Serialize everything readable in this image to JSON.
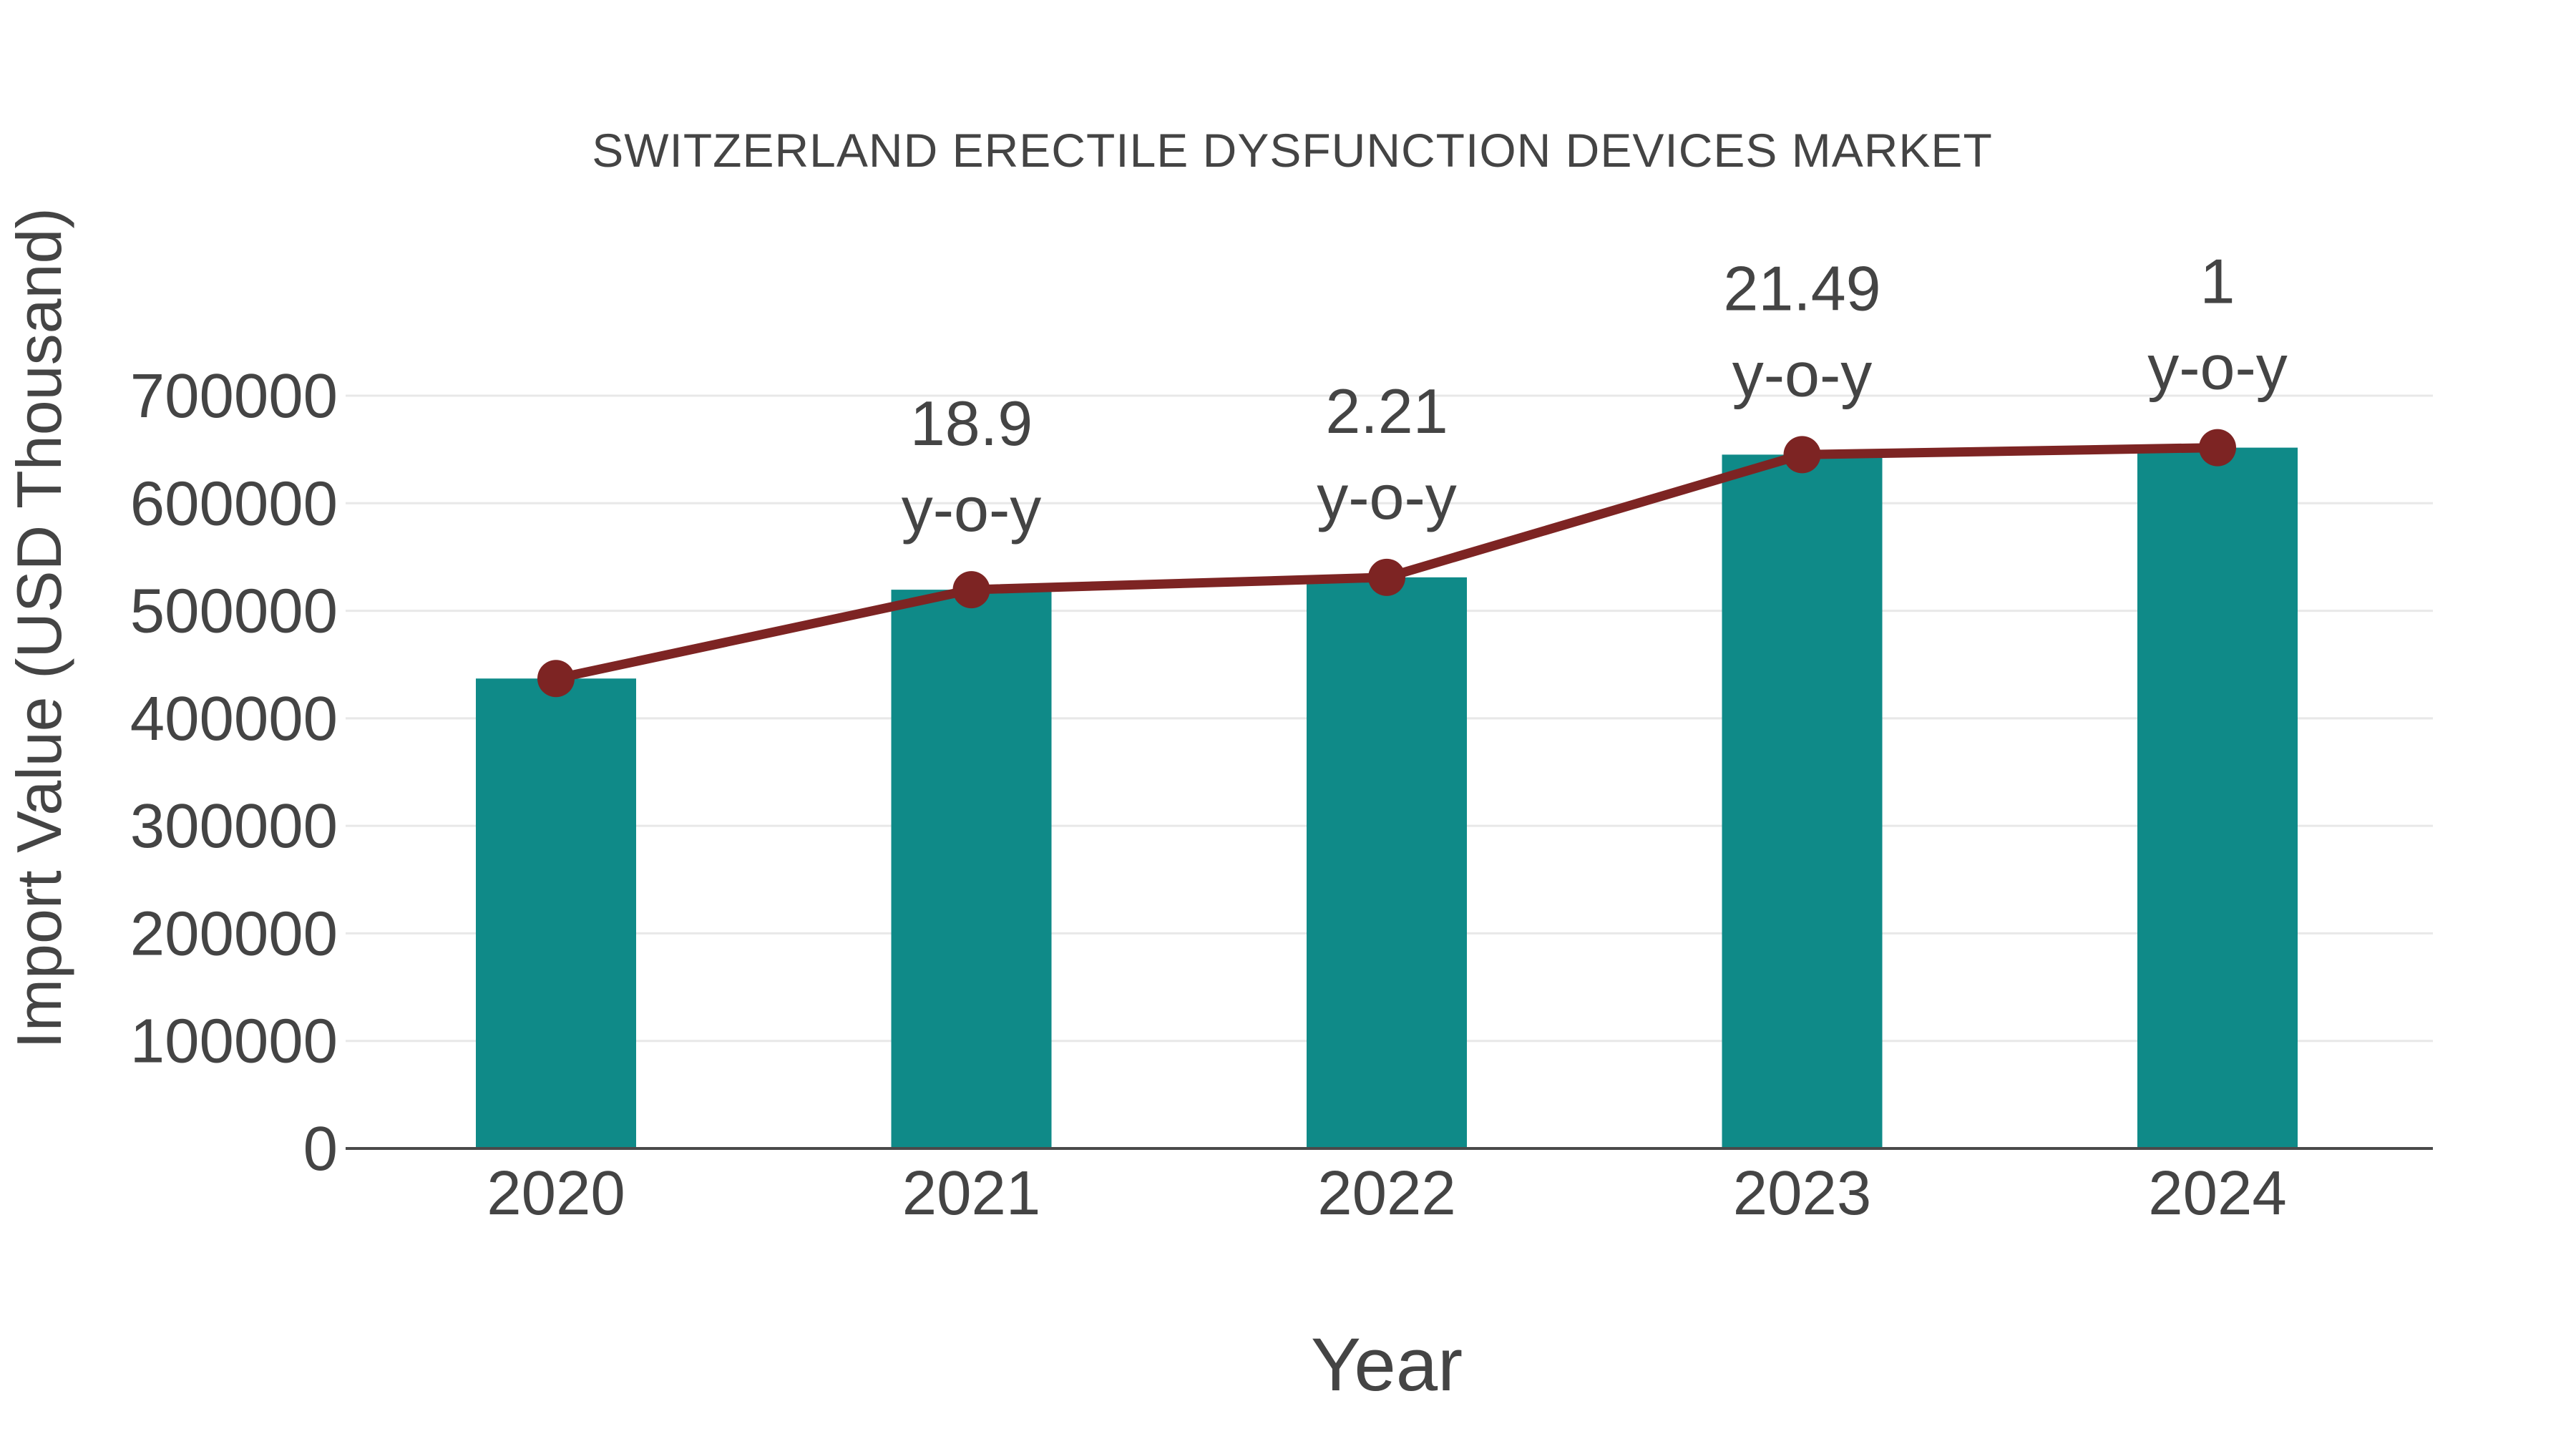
{
  "figure": {
    "background": "#ffffff"
  },
  "chart_data": {
    "type": "bar",
    "title": "SWITZERLAND ERECTILE DYSFUNCTION DEVICES MARKET",
    "xlabel": "Year",
    "ylabel": "Import Value (USD Thousand)",
    "categories": [
      "2020",
      "2021",
      "2022",
      "2023",
      "2024"
    ],
    "series": [
      {
        "name": "import-value-bars",
        "type": "bar",
        "color": "#0f8a88",
        "values": [
          437000,
          519600,
          531100,
          645200,
          651700
        ]
      },
      {
        "name": "import-value-trend-line",
        "type": "line",
        "color": "#7d2423",
        "values": [
          437000,
          519600,
          531100,
          645200,
          651700
        ]
      }
    ],
    "annotations": [
      {
        "category": "2021",
        "value": "18.9",
        "suffix": "y-o-y"
      },
      {
        "category": "2022",
        "value": "2.21",
        "suffix": "y-o-y"
      },
      {
        "category": "2023",
        "value": "21.49",
        "suffix": "y-o-y"
      },
      {
        "category": "2024",
        "value": "1",
        "suffix": "y-o-y"
      }
    ],
    "ylim": [
      0,
      700000
    ],
    "yticks": [
      "0",
      "100000",
      "200000",
      "300000",
      "400000",
      "500000",
      "600000",
      "700000"
    ],
    "grid": "horizontal-only",
    "legend": "none",
    "text_color": "#444444",
    "grid_color": "#e8e8e8",
    "axis_color": "#4a4a4a"
  }
}
